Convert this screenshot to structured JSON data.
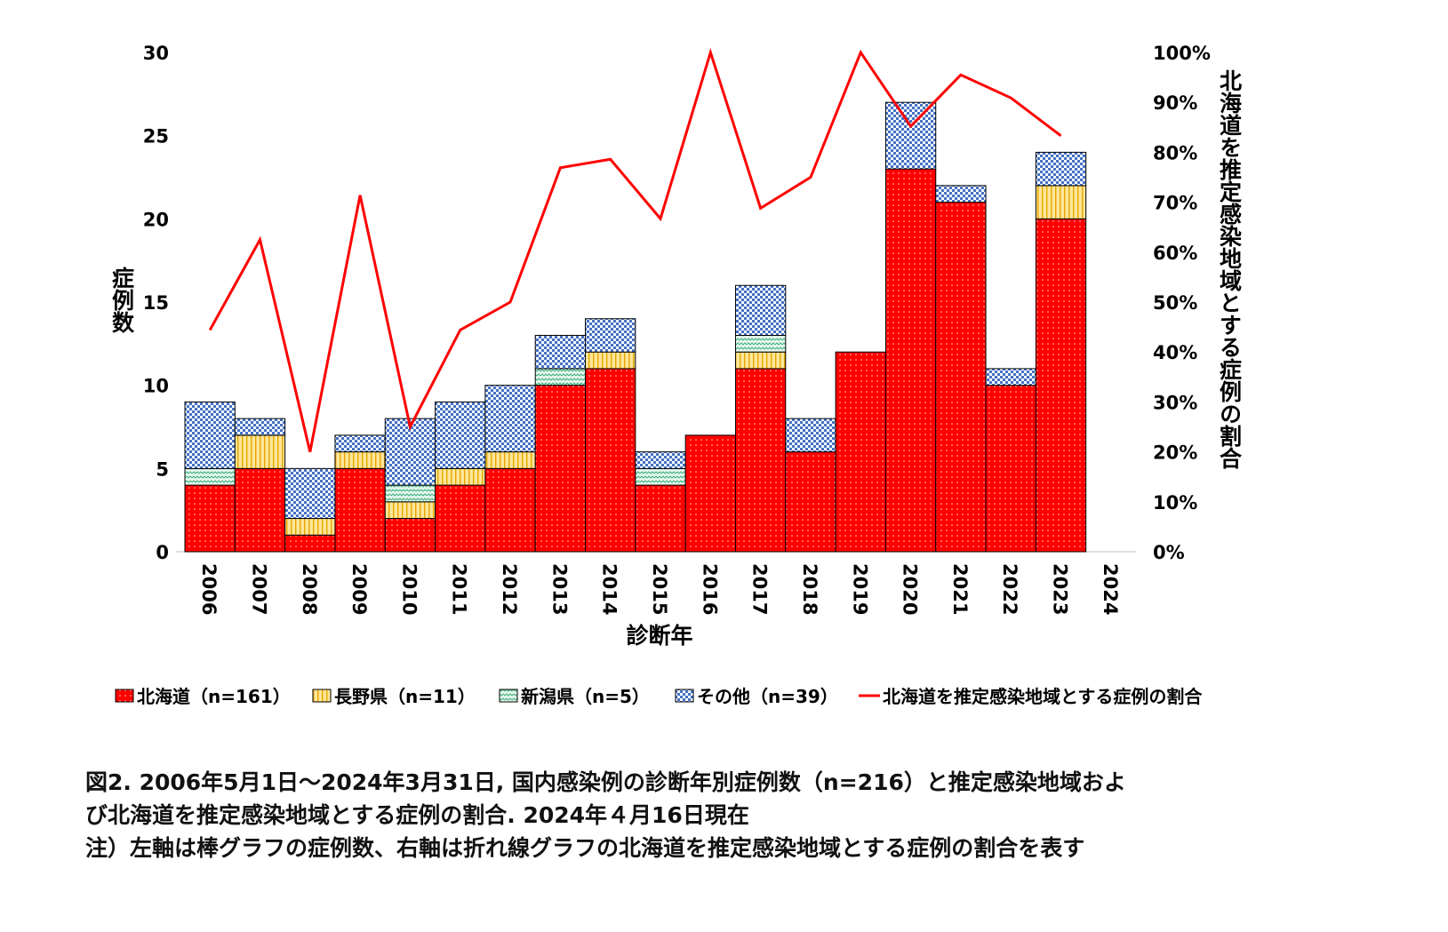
{
  "chart_data": {
    "type": "bar",
    "subtype": "stacked bar with line on secondary axis",
    "categories": [
      "2006",
      "2007",
      "2008",
      "2009",
      "2010",
      "2011",
      "2012",
      "2013",
      "2014",
      "2015",
      "2016",
      "2017",
      "2018",
      "2019",
      "2020",
      "2021",
      "2022",
      "2023",
      "2024"
    ],
    "series": [
      {
        "name": "北海道（n=161）",
        "color": "#ff0000",
        "values": [
          4,
          5,
          1,
          5,
          2,
          4,
          5,
          10,
          11,
          4,
          7,
          11,
          6,
          12,
          23,
          21,
          10,
          20,
          0
        ]
      },
      {
        "name": "長野県（n=11）",
        "color": "#ffd966",
        "values": [
          0,
          2,
          1,
          1,
          1,
          1,
          1,
          0,
          1,
          0,
          0,
          1,
          0,
          0,
          0,
          0,
          0,
          2,
          0
        ]
      },
      {
        "name": "新潟県（n=5）",
        "color": "#a9e4c8",
        "values": [
          1,
          0,
          0,
          0,
          1,
          0,
          0,
          1,
          0,
          1,
          0,
          1,
          0,
          0,
          0,
          0,
          0,
          0,
          0
        ]
      },
      {
        "name": "その他（n=39）",
        "color": "#4472c4",
        "values": [
          4,
          1,
          3,
          1,
          4,
          4,
          4,
          2,
          2,
          1,
          0,
          3,
          2,
          0,
          4,
          1,
          1,
          2,
          0
        ]
      }
    ],
    "line": {
      "name": "北海道を推定感染地域とする症例の割合",
      "color": "#ff0000",
      "values": [
        44.4,
        62.5,
        20,
        71.4,
        25,
        44.4,
        50,
        76.9,
        78.6,
        66.7,
        100,
        68.8,
        75,
        100,
        85.2,
        95.5,
        90.9,
        83.3,
        null
      ]
    },
    "xlabel": "診断年",
    "ylabel": "症例数",
    "y2label": "北海道を推定感染地域とする症例の割合",
    "ylim": [
      0,
      30
    ],
    "yticks": [
      "0",
      "5",
      "10",
      "15",
      "20",
      "25",
      "30"
    ],
    "y2lim": [
      0,
      100
    ],
    "y2ticks": [
      "0%",
      "10%",
      "20%",
      "30%",
      "40%",
      "50%",
      "60%",
      "70%",
      "80%",
      "90%",
      "100%"
    ],
    "legend_position": "bottom"
  },
  "caption": {
    "line1": "図2. 2006年5月1日～2024年3月31日, 国内感染例の診断年別症例数（n=216）と推定感染地域およ",
    "line2": "び北海道を推定感染地域とする症例の割合. 2024年４月16日現在",
    "line3": "注）左軸は棒グラフの症例数、右軸は折れ線グラフの北海道を推定感染地域とする症例の割合を表す"
  }
}
